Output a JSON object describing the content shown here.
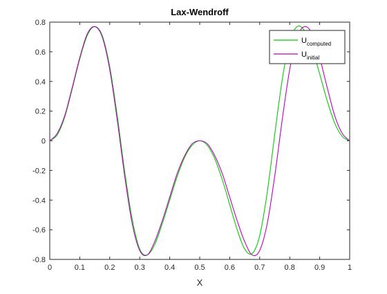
{
  "chart_data": {
    "type": "line",
    "title": "Lax-Wendroff",
    "xlabel": "X",
    "ylabel": "",
    "xlim": [
      0,
      1
    ],
    "ylim": [
      -0.8,
      0.8
    ],
    "grid": false,
    "legend_position": "top-right",
    "x_ticks": [
      "0",
      "0.1",
      "0.2",
      "0.3",
      "0.4",
      "0.5",
      "0.6",
      "0.7",
      "0.8",
      "0.9",
      "1"
    ],
    "y_ticks": [
      "-0.8",
      "-0.6",
      "-0.4",
      "-0.2",
      "0",
      "0.2",
      "0.4",
      "0.6",
      "0.8"
    ],
    "x": [
      0,
      0.025,
      0.05,
      0.075,
      0.1,
      0.125,
      0.15,
      0.175,
      0.2,
      0.225,
      0.25,
      0.275,
      0.3,
      0.325,
      0.35,
      0.375,
      0.4,
      0.425,
      0.45,
      0.475,
      0.5,
      0.525,
      0.55,
      0.575,
      0.6,
      0.625,
      0.65,
      0.675,
      0.7,
      0.725,
      0.75,
      0.775,
      0.8,
      0.825,
      0.85,
      0.875,
      0.9,
      0.925,
      0.95,
      0.975,
      1
    ],
    "series": [
      {
        "name_main": "U",
        "name_sub": "computed",
        "color": "#00cc00",
        "values": [
          0,
          0.04,
          0.16,
          0.35,
          0.55,
          0.71,
          0.77,
          0.71,
          0.5,
          0.17,
          -0.21,
          -0.53,
          -0.73,
          -0.77,
          -0.7,
          -0.56,
          -0.4,
          -0.24,
          -0.11,
          -0.03,
          0,
          -0.03,
          -0.12,
          -0.26,
          -0.43,
          -0.6,
          -0.73,
          -0.76,
          -0.64,
          -0.35,
          0.04,
          0.41,
          0.67,
          0.77,
          0.74,
          0.62,
          0.45,
          0.27,
          0.12,
          0.03,
          0
        ]
      },
      {
        "name_main": "U",
        "name_sub": "initial",
        "color": "#bf00bf",
        "values": [
          0,
          0.05,
          0.17,
          0.36,
          0.56,
          0.72,
          0.77,
          0.7,
          0.48,
          0.14,
          -0.24,
          -0.56,
          -0.74,
          -0.77,
          -0.68,
          -0.54,
          -0.38,
          -0.22,
          -0.1,
          -0.02,
          0,
          -0.02,
          -0.1,
          -0.22,
          -0.38,
          -0.54,
          -0.68,
          -0.77,
          -0.74,
          -0.56,
          -0.24,
          0.14,
          0.48,
          0.7,
          0.77,
          0.72,
          0.56,
          0.36,
          0.17,
          0.05,
          0
        ]
      }
    ]
  }
}
